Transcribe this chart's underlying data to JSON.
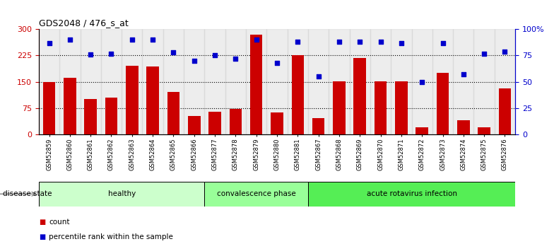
{
  "title": "GDS2048 / 476_s_at",
  "samples": [
    "GSM52859",
    "GSM52860",
    "GSM52861",
    "GSM52862",
    "GSM52863",
    "GSM52864",
    "GSM52865",
    "GSM52866",
    "GSM52877",
    "GSM52878",
    "GSM52879",
    "GSM52880",
    "GSM52881",
    "GSM52867",
    "GSM52868",
    "GSM52869",
    "GSM52870",
    "GSM52871",
    "GSM52872",
    "GSM52873",
    "GSM52874",
    "GSM52875",
    "GSM52876"
  ],
  "counts": [
    150,
    162,
    100,
    105,
    195,
    193,
    120,
    52,
    65,
    73,
    285,
    62,
    225,
    45,
    152,
    217,
    152,
    152,
    20,
    175,
    40,
    20,
    130
  ],
  "percentiles": [
    87,
    90,
    76,
    77,
    90,
    90,
    78,
    70,
    75,
    72,
    90,
    68,
    88,
    55,
    88,
    88,
    88,
    87,
    50,
    87,
    57,
    77,
    79
  ],
  "groups": [
    {
      "label": "healthy",
      "start": 0,
      "end": 8,
      "color": "#ccffcc"
    },
    {
      "label": "convalescence phase",
      "start": 8,
      "end": 13,
      "color": "#99ff99"
    },
    {
      "label": "acute rotavirus infection",
      "start": 13,
      "end": 23,
      "color": "#55ee55"
    }
  ],
  "left_axis_color": "#cc0000",
  "right_axis_color": "#0000cc",
  "bar_color": "#cc0000",
  "dot_color": "#0000cc",
  "ylim_left": [
    0,
    300
  ],
  "ylim_right": [
    0,
    100
  ],
  "yticks_left": [
    0,
    75,
    150,
    225,
    300
  ],
  "yticks_right": [
    0,
    25,
    50,
    75,
    100
  ],
  "ytick_labels_right": [
    "0",
    "25",
    "50",
    "75",
    "100%"
  ],
  "grid_values": [
    75,
    150,
    225
  ],
  "background_color": "#ffffff",
  "tick_bg_color": "#cccccc",
  "legend_count_label": "count",
  "legend_pct_label": "percentile rank within the sample",
  "disease_state_label": "disease state"
}
